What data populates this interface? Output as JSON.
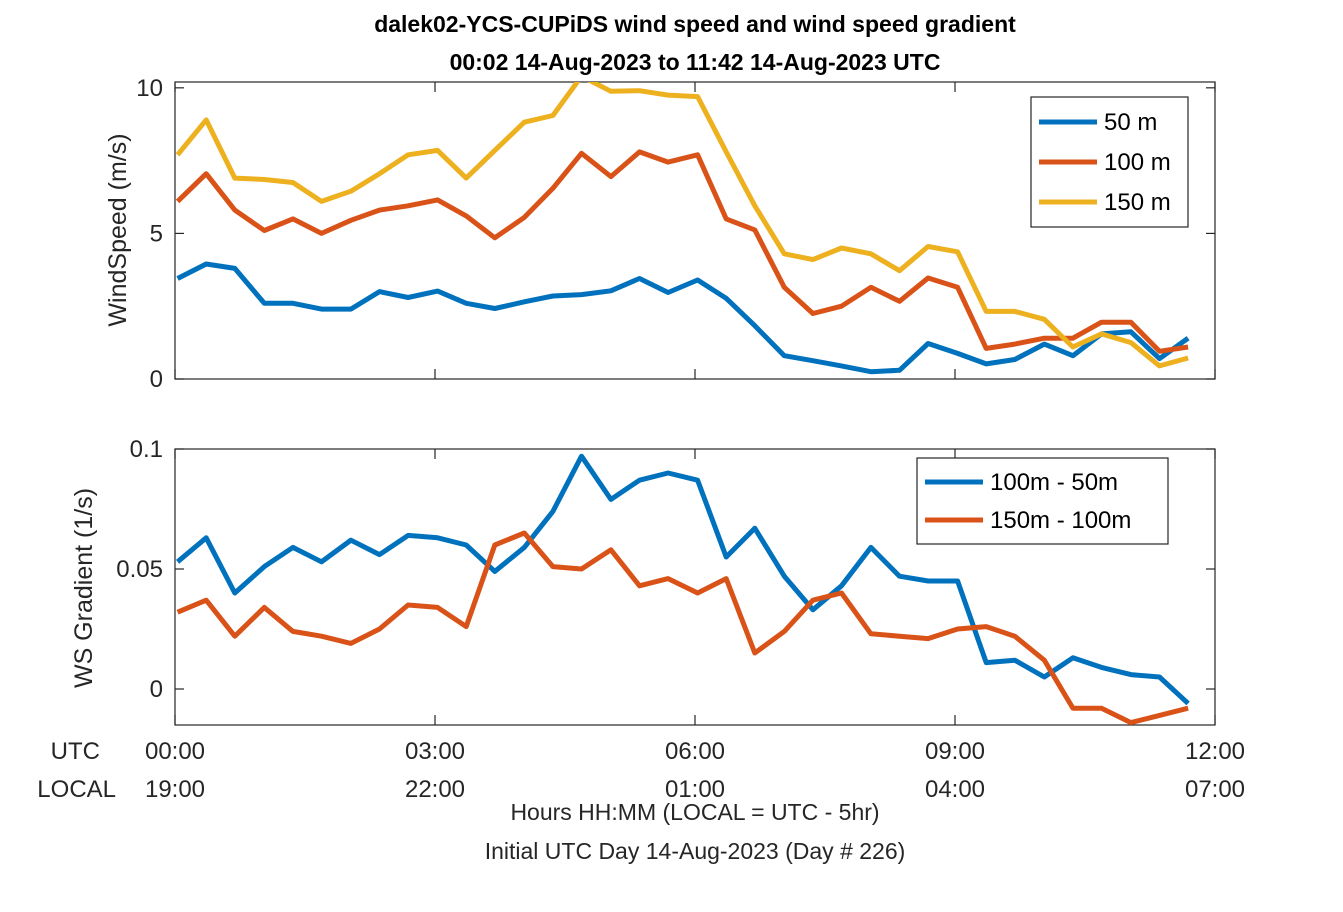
{
  "title": {
    "line1": "dalek02-YCS-CUPiDS  wind speed and wind speed gradient",
    "line2": "00:02 14-Aug-2023 to 11:42 14-Aug-2023  UTC"
  },
  "xaxis": {
    "utc_label": "UTC",
    "local_label": "LOCAL",
    "utc_ticks": [
      "00:00",
      "03:00",
      "06:00",
      "09:00",
      "12:00"
    ],
    "local_ticks": [
      "19:00",
      "22:00",
      "01:00",
      "04:00",
      "07:00"
    ],
    "note_line1": "Hours HH:MM  (LOCAL = UTC - 5hr)",
    "note_line2": "Initial UTC Day 14-Aug-2023 (Day # 226)"
  },
  "chart_data": [
    {
      "type": "line",
      "ylabel": "WindSpeed (m/s)",
      "ylim": [
        0,
        10.2
      ],
      "yticks": [
        0,
        5,
        10
      ],
      "ytick_labels": [
        "0",
        "5",
        "10"
      ],
      "xlim_hours": [
        0,
        12
      ],
      "legend_position": "top-right",
      "x_hours": [
        0.03,
        0.36,
        0.69,
        1.03,
        1.36,
        1.69,
        2.03,
        2.36,
        2.69,
        3.03,
        3.36,
        3.69,
        4.03,
        4.36,
        4.69,
        5.03,
        5.36,
        5.69,
        6.03,
        6.36,
        6.69,
        7.03,
        7.36,
        7.69,
        8.03,
        8.36,
        8.69,
        9.03,
        9.36,
        9.69,
        10.03,
        10.36,
        10.69,
        11.03,
        11.36,
        11.69
      ],
      "series": [
        {
          "name": "50 m",
          "color": "#0072BD",
          "values": [
            3.45,
            3.95,
            3.8,
            2.6,
            2.6,
            2.4,
            2.4,
            3.0,
            2.8,
            3.02,
            2.6,
            2.42,
            2.65,
            2.85,
            2.9,
            3.03,
            3.45,
            2.97,
            3.4,
            2.77,
            1.83,
            0.8,
            0.63,
            0.45,
            0.25,
            0.3,
            1.22,
            0.88,
            0.52,
            0.67,
            1.2,
            0.8,
            1.55,
            1.62,
            0.7,
            1.4
          ]
        },
        {
          "name": "100 m",
          "color": "#D95319",
          "values": [
            6.1,
            7.05,
            5.8,
            5.1,
            5.5,
            5.0,
            5.45,
            5.8,
            5.95,
            6.15,
            5.6,
            4.85,
            5.55,
            6.55,
            7.75,
            6.95,
            7.8,
            7.45,
            7.7,
            5.5,
            5.12,
            3.15,
            2.25,
            2.5,
            3.15,
            2.67,
            3.47,
            3.15,
            1.05,
            1.2,
            1.4,
            1.4,
            1.95,
            1.95,
            0.95,
            1.1
          ]
        },
        {
          "name": "150 m",
          "color": "#EDB120",
          "values": [
            7.7,
            8.9,
            6.9,
            6.85,
            6.75,
            6.1,
            6.45,
            7.05,
            7.7,
            7.85,
            6.9,
            7.85,
            8.82,
            9.05,
            10.4,
            9.88,
            9.9,
            9.75,
            9.7,
            7.8,
            5.95,
            4.3,
            4.1,
            4.5,
            4.3,
            3.72,
            4.55,
            4.37,
            2.32,
            2.32,
            2.05,
            1.1,
            1.55,
            1.25,
            0.45,
            0.72
          ]
        }
      ]
    },
    {
      "type": "line",
      "ylabel": "WS Gradient (1/s)",
      "ylim": [
        -0.015,
        0.1
      ],
      "yticks": [
        0,
        0.05,
        0.1
      ],
      "ytick_labels": [
        "0",
        "0.05",
        "0.1"
      ],
      "xlim_hours": [
        0,
        12
      ],
      "legend_position": "top-right",
      "x_hours": [
        0.03,
        0.36,
        0.69,
        1.03,
        1.36,
        1.69,
        2.03,
        2.36,
        2.69,
        3.03,
        3.36,
        3.69,
        4.03,
        4.36,
        4.69,
        5.03,
        5.36,
        5.69,
        6.03,
        6.36,
        6.69,
        7.03,
        7.36,
        7.69,
        8.03,
        8.36,
        8.69,
        9.03,
        9.36,
        9.69,
        10.03,
        10.36,
        10.69,
        11.03,
        11.36,
        11.69
      ],
      "series": [
        {
          "name": "100m - 50m",
          "color": "#0072BD",
          "values": [
            0.053,
            0.063,
            0.04,
            0.051,
            0.059,
            0.053,
            0.062,
            0.056,
            0.064,
            0.063,
            0.06,
            0.049,
            0.059,
            0.074,
            0.097,
            0.079,
            0.087,
            0.09,
            0.087,
            0.055,
            0.067,
            0.047,
            0.033,
            0.043,
            0.059,
            0.047,
            0.045,
            0.045,
            0.011,
            0.012,
            0.005,
            0.013,
            0.009,
            0.006,
            0.005,
            -0.006
          ]
        },
        {
          "name": "150m - 100m",
          "color": "#D95319",
          "values": [
            0.032,
            0.037,
            0.022,
            0.034,
            0.024,
            0.022,
            0.019,
            0.025,
            0.035,
            0.034,
            0.026,
            0.06,
            0.065,
            0.051,
            0.05,
            0.058,
            0.043,
            0.046,
            0.04,
            0.046,
            0.015,
            0.024,
            0.037,
            0.04,
            0.023,
            0.022,
            0.021,
            0.025,
            0.026,
            0.022,
            0.012,
            -0.008,
            -0.008,
            -0.014,
            -0.011,
            -0.008
          ]
        }
      ]
    }
  ]
}
